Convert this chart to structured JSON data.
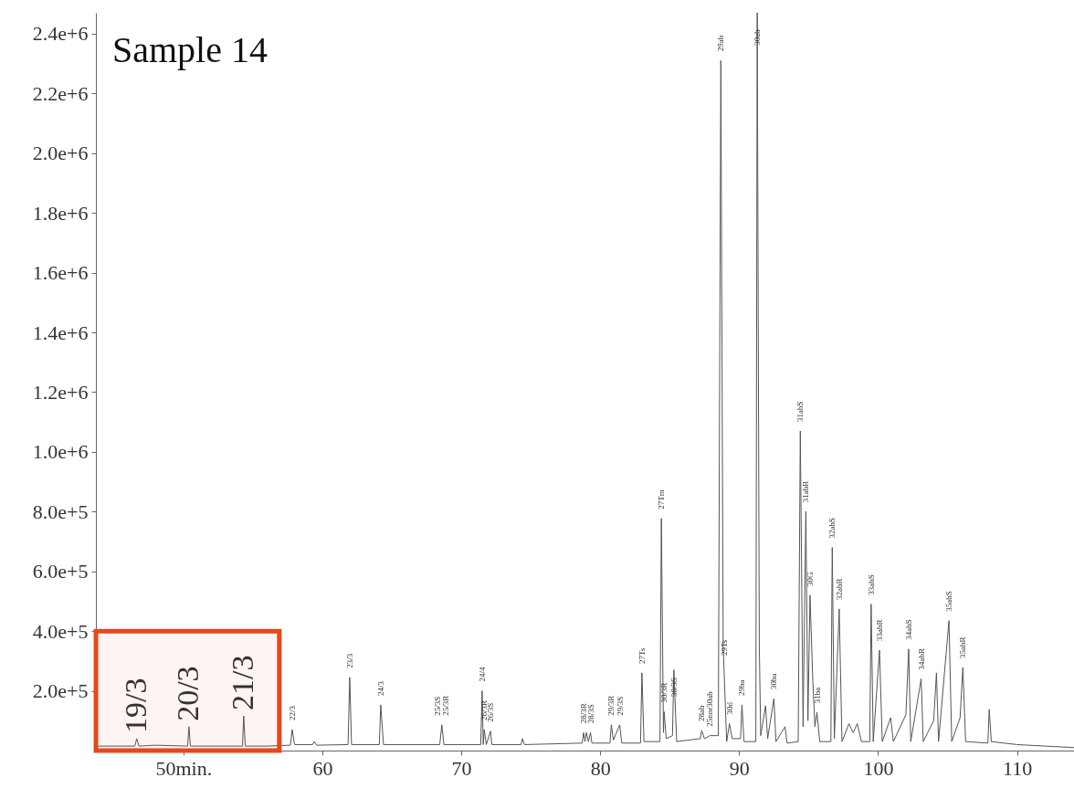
{
  "chart_data": {
    "type": "line",
    "title": "Sample 14",
    "x": [
      43.7,
      45,
      46.5,
      46.64,
      46.8,
      48,
      50.3,
      50.4,
      50.5,
      52,
      54.25,
      54.34,
      54.45,
      56,
      57.7,
      57.83,
      58.0,
      59.3,
      59.4,
      59.6,
      61.85,
      61.97,
      62.1,
      64.1,
      64.2,
      64.4,
      68.45,
      68.6,
      68.75,
      71.4,
      71.5,
      71.58,
      71.65,
      71.8,
      72.1,
      72.2,
      74.3,
      74.4,
      74.55,
      78.7,
      78.8,
      78.9,
      79.0,
      79.15,
      79.3,
      79.4,
      80.7,
      80.8,
      80.95,
      81.4,
      81.55,
      82.9,
      83.0,
      83.15,
      84.3,
      84.4,
      84.55,
      84.6,
      84.75,
      85.2,
      85.3,
      85.5,
      87.2,
      87.3,
      87.5,
      87.9,
      88.5,
      88.68,
      88.85,
      88.9,
      89.1,
      89.3,
      89.5,
      90.1,
      90.2,
      90.35,
      91.2,
      91.3,
      91.45,
      91.55,
      91.9,
      92.05,
      92.5,
      92.65,
      93.3,
      93.45,
      94.25,
      94.4,
      94.6,
      94.8,
      94.95,
      95.1,
      95.3,
      95.45,
      95.6,
      95.8,
      96.6,
      96.7,
      96.85,
      97.2,
      97.4,
      97.9,
      98.2,
      98.5,
      98.8,
      99.4,
      99.5,
      99.65,
      100.1,
      100.3,
      100.9,
      101.1,
      102.0,
      102.2,
      102.35,
      103.1,
      103.25,
      104.0,
      104.2,
      104.35,
      105.1,
      105.3,
      105.9,
      106.1,
      106.3,
      107.9,
      108.0,
      108.15,
      110,
      112,
      114.1
    ],
    "series": [
      {
        "color": "#555555",
        "values": [
          15000,
          15000,
          15000,
          40000,
          15000,
          18000,
          15000,
          80000,
          15000,
          15000,
          15000,
          116000,
          15000,
          15000,
          18000,
          70000,
          20000,
          20000,
          30000,
          18000,
          20000,
          245000,
          20000,
          20000,
          153000,
          20000,
          20000,
          86000,
          20000,
          20000,
          200000,
          20000,
          70000,
          20000,
          65000,
          20000,
          20000,
          40000,
          20000,
          25000,
          60000,
          30000,
          60000,
          30000,
          60000,
          25000,
          25000,
          86000,
          35000,
          86000,
          25000,
          25000,
          260000,
          30000,
          30000,
          777000,
          60000,
          130000,
          40000,
          50000,
          270000,
          30000,
          40000,
          67000,
          40000,
          50000,
          50000,
          2310000,
          350000,
          287000,
          30000,
          90000,
          40000,
          40000,
          153000,
          30000,
          30000,
          2470000,
          350000,
          50000,
          150000,
          40000,
          174000,
          30000,
          80000,
          25000,
          30000,
          1070000,
          80000,
          800000,
          100000,
          520000,
          235000,
          80000,
          128000,
          30000,
          30000,
          680000,
          40000,
          474000,
          30000,
          90000,
          60000,
          90000,
          30000,
          30000,
          490000,
          30000,
          336000,
          30000,
          110000,
          30000,
          120000,
          340000,
          30000,
          240000,
          30000,
          100000,
          260000,
          30000,
          435000,
          30000,
          110000,
          278000,
          30000,
          25000,
          138000,
          30000,
          20000,
          15000,
          10000
        ]
      }
    ],
    "xlim": [
      43.7,
      114.1
    ],
    "xticks": [
      {
        "value": 50,
        "label": "50min."
      },
      60,
      70,
      80,
      90,
      100,
      110
    ],
    "ylim": [
      0,
      2470000
    ],
    "yticks": [
      {
        "value": 200000,
        "label": "2.0e+5"
      },
      {
        "value": 400000,
        "label": "4.0e+5"
      },
      {
        "value": 600000,
        "label": "6.0e+5"
      },
      {
        "value": 800000,
        "label": "8.0e+5"
      },
      {
        "value": 1000000,
        "label": "1.0e+6"
      },
      {
        "value": 1200000,
        "label": "1.2e+6"
      },
      {
        "value": 1400000,
        "label": "1.4e+6"
      },
      {
        "value": 1600000,
        "label": "1.6e+6"
      },
      {
        "value": 1800000,
        "label": "1.8e+6"
      },
      {
        "value": 2000000,
        "label": "2.0e+6"
      },
      {
        "value": 2200000,
        "label": "2.2e+6"
      },
      {
        "value": 2400000,
        "label": "2.4e+6"
      }
    ],
    "bands": [
      {
        "axis": "x",
        "from": 43.7,
        "to": 56.9,
        "color": "#e8461c"
      }
    ],
    "annotations": [
      {
        "text": "19/3",
        "x": 46.64,
        "y": 40000
      },
      {
        "text": "20/3",
        "x": 50.4,
        "y": 80000
      },
      {
        "text": "21/3",
        "x": 54.34,
        "y": 116000
      },
      {
        "text": "22/3",
        "x": 57.83,
        "y": 70000
      },
      {
        "text": "23/3",
        "x": 61.97,
        "y": 245000
      },
      {
        "text": "24/3",
        "x": 64.2,
        "y": 153000
      },
      {
        "text": "25/3S",
        "x": 68.3,
        "y": 86000
      },
      {
        "text": "25/3R",
        "x": 68.9,
        "y": 86000
      },
      {
        "text": "24/4",
        "x": 71.5,
        "y": 200000
      },
      {
        "text": "26/3R",
        "x": 71.65,
        "y": 70000
      },
      {
        "text": "26/3S",
        "x": 72.1,
        "y": 65000
      },
      {
        "text": "28/3R",
        "x": 78.8,
        "y": 60000
      },
      {
        "text": "28/3S",
        "x": 79.3,
        "y": 60000
      },
      {
        "text": "29/3R",
        "x": 80.8,
        "y": 86000
      },
      {
        "text": "29/3S",
        "x": 81.4,
        "y": 86000
      },
      {
        "text": "27Ts",
        "x": 83.0,
        "y": 260000
      },
      {
        "text": "27Tm",
        "x": 84.4,
        "y": 777000
      },
      {
        "text": "30/3R",
        "x": 84.6,
        "y": 130000
      },
      {
        "text": "30/3S",
        "x": 85.3,
        "y": 150000
      },
      {
        "text": "28ab",
        "x": 87.3,
        "y": 67000
      },
      {
        "text": "25nor30ab",
        "x": 87.9,
        "y": 50000
      },
      {
        "text": "29ab",
        "x": 88.68,
        "y": 2310000
      },
      {
        "text": "29Ts",
        "x": 88.95,
        "y": 287000
      },
      {
        "text": "30d",
        "x": 89.3,
        "y": 90000
      },
      {
        "text": "29ba",
        "x": 90.2,
        "y": 153000
      },
      {
        "text": "30ab",
        "x": 91.3,
        "y": 2330000
      },
      {
        "text": "30ba",
        "x": 92.5,
        "y": 174000
      },
      {
        "text": "31abS",
        "x": 94.4,
        "y": 1070000
      },
      {
        "text": "31abR",
        "x": 94.8,
        "y": 800000
      },
      {
        "text": "30G",
        "x": 95.1,
        "y": 520000
      },
      {
        "text": "31ba",
        "x": 95.6,
        "y": 128000
      },
      {
        "text": "32abS",
        "x": 96.7,
        "y": 680000
      },
      {
        "text": "32abR",
        "x": 97.2,
        "y": 474000
      },
      {
        "text": "33abS",
        "x": 99.5,
        "y": 490000
      },
      {
        "text": "33abR",
        "x": 100.1,
        "y": 336000
      },
      {
        "text": "34abS",
        "x": 102.2,
        "y": 340000
      },
      {
        "text": "34abR",
        "x": 103.1,
        "y": 240000
      },
      {
        "text": "35abS",
        "x": 105.1,
        "y": 435000
      },
      {
        "text": "35abR",
        "x": 106.1,
        "y": 278000
      }
    ]
  }
}
